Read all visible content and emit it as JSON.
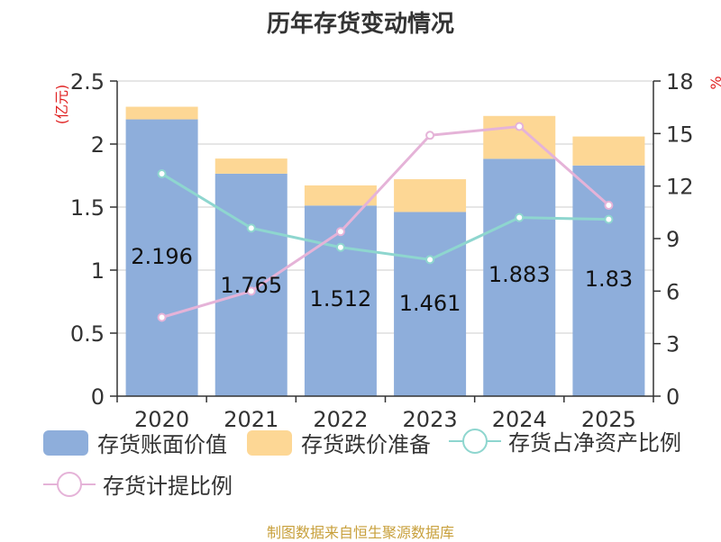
{
  "title": "历年存货变动情况",
  "source": "制图数据来自恒生聚源数据库",
  "chart_data": {
    "type": "bar",
    "categories": [
      "2020",
      "2021",
      "2022",
      "2023",
      "2024",
      "2025"
    ],
    "left_unit": "(亿元)",
    "right_unit": "%",
    "left_axis": {
      "min": 0,
      "max": 2.5,
      "ticks": [
        "0",
        "0.5",
        "1",
        "1.5",
        "2",
        "2.5"
      ]
    },
    "right_axis": {
      "min": 0,
      "max": 18,
      "ticks": [
        "0",
        "3",
        "6",
        "9",
        "12",
        "15",
        "18"
      ]
    },
    "grid": true,
    "legend_position": "bottom",
    "series": [
      {
        "name": "存货账面价值",
        "type": "bar",
        "stack": "inv",
        "axis": "left",
        "color": "#8eaedb",
        "values": [
          2.196,
          1.765,
          1.512,
          1.461,
          1.883,
          1.83
        ],
        "labels": [
          "2.196",
          "1.765",
          "1.512",
          "1.461",
          "1.883",
          "1.83"
        ]
      },
      {
        "name": "存货跌价准备",
        "type": "bar",
        "stack": "inv",
        "axis": "left",
        "color": "#fdd795",
        "values": [
          0.1,
          0.12,
          0.16,
          0.26,
          0.34,
          0.23
        ]
      },
      {
        "name": "存货占净资产比例",
        "type": "line",
        "axis": "right",
        "color": "#8ed6cf",
        "values": [
          12.7,
          9.6,
          8.5,
          7.8,
          10.2,
          10.1
        ]
      },
      {
        "name": "存货计提比例",
        "type": "line",
        "axis": "right",
        "color": "#e5b3d8",
        "values": [
          4.5,
          6.0,
          9.4,
          14.9,
          15.4,
          10.9
        ]
      }
    ]
  }
}
